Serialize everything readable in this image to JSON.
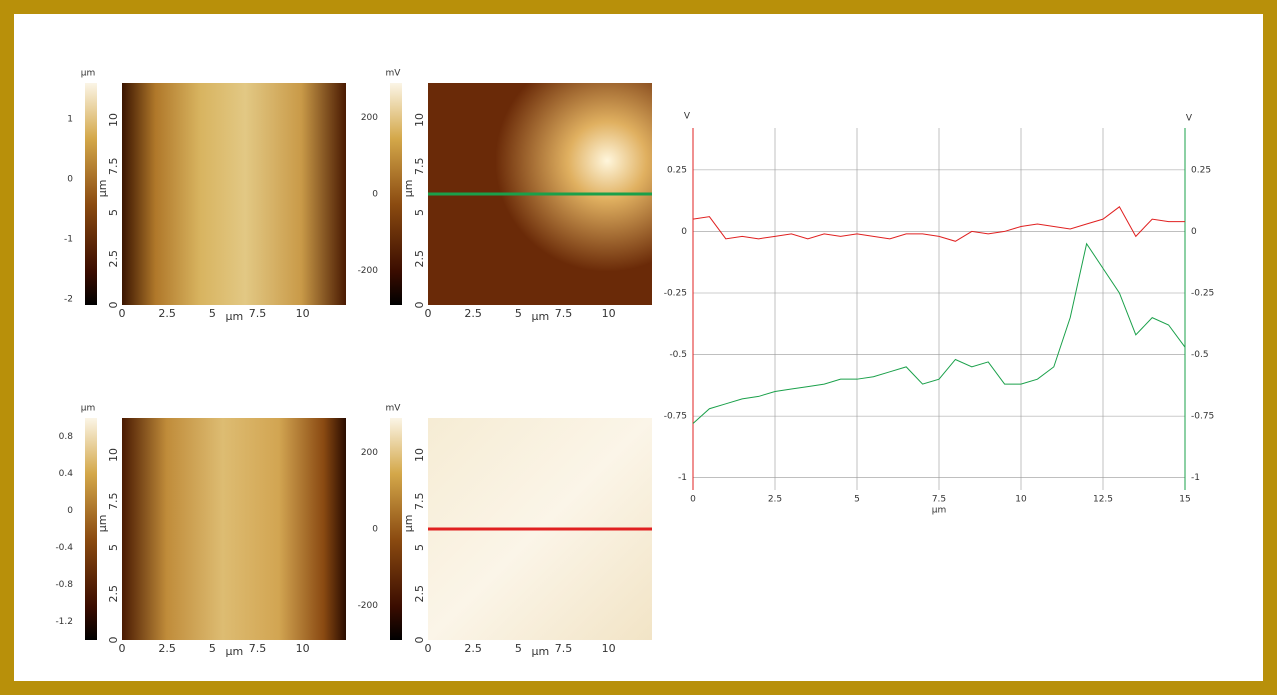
{
  "chart_data": [
    {
      "type": "image",
      "colorbar_unit": "µm",
      "clim": [
        -2.1,
        1.6
      ],
      "colorbar_ticks": [
        1,
        0,
        -1,
        -2
      ],
      "xlim": [
        0,
        12.4
      ],
      "ylim": [
        0,
        12
      ],
      "xticks": [
        0,
        2.5,
        5,
        7.5,
        10
      ],
      "yticks": [
        0,
        2.5,
        5,
        7.5,
        10
      ],
      "xlabel": "µm",
      "ylabel": "µm"
    },
    {
      "type": "image",
      "colorbar_unit": "mV",
      "clim": [
        -290,
        290
      ],
      "colorbar_ticks": [
        200,
        0,
        -200
      ],
      "xlim": [
        0,
        12.4
      ],
      "ylim": [
        0,
        12
      ],
      "xticks": [
        0,
        2.5,
        5,
        7.5,
        10
      ],
      "yticks": [
        0,
        2.5,
        5,
        7.5,
        10
      ],
      "xlabel": "µm",
      "ylabel": "µm",
      "profile_y": 6,
      "profile_color": "#1aa04a"
    },
    {
      "type": "image",
      "colorbar_unit": "µm",
      "clim": [
        -1.4,
        1.0
      ],
      "colorbar_ticks": [
        0.8,
        0.4,
        0,
        -0.4,
        -0.8,
        -1.2
      ],
      "xlim": [
        0,
        12.4
      ],
      "ylim": [
        0,
        12
      ],
      "xticks": [
        0,
        2.5,
        5,
        7.5,
        10
      ],
      "yticks": [
        0,
        2.5,
        5,
        7.5,
        10
      ],
      "xlabel": "µm",
      "ylabel": "µm"
    },
    {
      "type": "image",
      "colorbar_unit": "mV",
      "clim": [
        -290,
        290
      ],
      "colorbar_ticks": [
        200,
        0,
        -200
      ],
      "xlim": [
        0,
        12.4
      ],
      "ylim": [
        0,
        12
      ],
      "xticks": [
        0,
        2.5,
        5,
        7.5,
        10
      ],
      "yticks": [
        0,
        2.5,
        5,
        7.5,
        10
      ],
      "xlabel": "µm",
      "ylabel": "µm",
      "profile_y": 6,
      "profile_color": "#e02020"
    },
    {
      "type": "line",
      "xlabel": "µm",
      "ylabel": "V",
      "y2label": "V",
      "grid": true,
      "xlim": [
        0,
        15
      ],
      "xticks": [
        0,
        2.5,
        5,
        7.5,
        10,
        12.5,
        15
      ],
      "ylim": [
        -1.05,
        0.42
      ],
      "yticks": [
        0.25,
        0,
        -0.25,
        -0.5,
        -0.75,
        -1
      ],
      "y2lim": [
        -1.05,
        0.42
      ],
      "y2ticks": [
        0.25,
        0,
        -0.25,
        -0.5,
        -0.75,
        -1
      ],
      "x": [
        0,
        0.5,
        1,
        1.5,
        2,
        2.5,
        3,
        3.5,
        4,
        4.5,
        5,
        5.5,
        6,
        6.5,
        7,
        7.5,
        8,
        8.5,
        9,
        9.5,
        10,
        10.5,
        11,
        11.5,
        12,
        12.5,
        13,
        13.5,
        14,
        14.5,
        15
      ],
      "series": [
        {
          "color": "#e02020",
          "values": [
            0.05,
            0.06,
            -0.03,
            -0.02,
            -0.03,
            -0.02,
            -0.01,
            -0.03,
            -0.01,
            -0.02,
            -0.01,
            -0.02,
            -0.03,
            -0.01,
            -0.01,
            -0.02,
            -0.04,
            0.0,
            -0.01,
            0.0,
            0.02,
            0.03,
            0.02,
            0.01,
            0.03,
            0.05,
            0.1,
            -0.02,
            0.05,
            0.04,
            0.04
          ]
        },
        {
          "color": "#1aa04a",
          "axis": "y2",
          "values": [
            -0.78,
            -0.72,
            -0.7,
            -0.68,
            -0.67,
            -0.65,
            -0.64,
            -0.63,
            -0.62,
            -0.6,
            -0.6,
            -0.59,
            -0.57,
            -0.55,
            -0.62,
            -0.6,
            -0.52,
            -0.55,
            -0.53,
            -0.62,
            -0.62,
            -0.6,
            -0.55,
            -0.35,
            -0.05,
            -0.15,
            -0.25,
            -0.42,
            -0.35,
            -0.38,
            -0.47
          ]
        }
      ]
    }
  ]
}
